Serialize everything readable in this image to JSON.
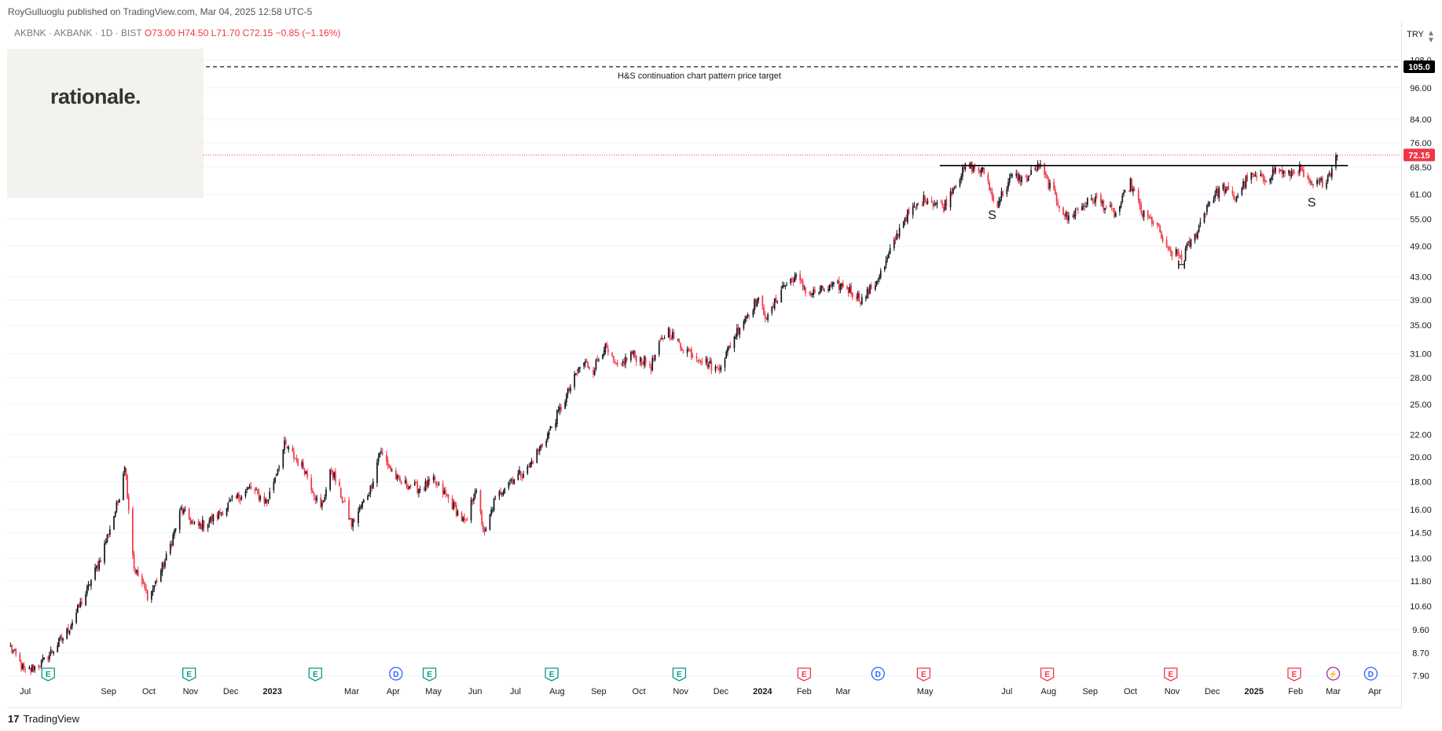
{
  "header": {
    "published": "RoyGulluoglu published on TradingView.com, Mar 04, 2025 12:58 UTC-5",
    "symbol": "AKBNK · AKBANK · 1D · BIST",
    "ohlc": "O73.00  H74.50  L71.70  C72.15  −0.85 (−1.16%)"
  },
  "watermark": "rationale.",
  "currency": "TRY",
  "footer": {
    "brand": "TradingView",
    "mark": "17"
  },
  "colors": {
    "up": "#131722",
    "down": "#f23645",
    "last_price_bg": "#f23645",
    "target_bg": "#000000",
    "grid": "#f0f3fa"
  },
  "chart_data": {
    "type": "candlestick",
    "scale": "log",
    "price_axis": {
      "ticks": [
        7.9,
        8.7,
        9.6,
        10.6,
        11.8,
        13.0,
        14.5,
        16.0,
        18.0,
        20.0,
        22.0,
        25.0,
        28.0,
        31.0,
        35.0,
        39.0,
        43.0,
        49.0,
        55.0,
        61.0,
        68.5,
        76.0,
        84.0,
        96.0,
        108.0
      ],
      "tick_labels": [
        "7.90",
        "8.70",
        "9.60",
        "10.60",
        "11.80",
        "13.00",
        "14.50",
        "16.00",
        "18.00",
        "20.00",
        "22.00",
        "25.00",
        "28.00",
        "31.00",
        "35.00",
        "39.00",
        "43.00",
        "49.00",
        "55.00",
        "61.00",
        "68.50",
        "76.00",
        "84.00",
        "96.00",
        "108.0"
      ],
      "range": [
        7.7,
        118
      ]
    },
    "time_axis": {
      "labels": [
        "Jul",
        "Sep",
        "Oct",
        "Nov",
        "Dec",
        "2023",
        "Mar",
        "Apr",
        "May",
        "Jun",
        "Jul",
        "Aug",
        "Sep",
        "Oct",
        "Nov",
        "Dec",
        "2024",
        "Feb",
        "Mar",
        "May",
        "Jul",
        "Aug",
        "Sep",
        "Oct",
        "Nov",
        "Dec",
        "2025",
        "Feb",
        "Mar",
        "Apr"
      ],
      "bold": [
        "2023",
        "2024",
        "2025"
      ],
      "dates": [
        "2022-07-01",
        "2022-09-01",
        "2022-10-01",
        "2022-11-01",
        "2022-12-01",
        "2023-01-01",
        "2023-03-01",
        "2023-04-01",
        "2023-05-01",
        "2023-06-01",
        "2023-07-01",
        "2023-08-01",
        "2023-09-01",
        "2023-10-01",
        "2023-11-01",
        "2023-12-01",
        "2024-01-01",
        "2024-02-01",
        "2024-03-01",
        "2024-05-01",
        "2024-07-01",
        "2024-08-01",
        "2024-09-01",
        "2024-10-01",
        "2024-11-01",
        "2024-12-01",
        "2025-01-01",
        "2025-02-01",
        "2025-03-01",
        "2025-04-01"
      ]
    },
    "anchors": [
      [
        "2022-06-20",
        8.9
      ],
      [
        "2022-07-01",
        8.0
      ],
      [
        "2022-07-15",
        8.4
      ],
      [
        "2022-08-01",
        9.5
      ],
      [
        "2022-08-15",
        11.2
      ],
      [
        "2022-08-26",
        13.0
      ],
      [
        "2022-09-08",
        16.5
      ],
      [
        "2022-09-13",
        19.5
      ],
      [
        "2022-09-20",
        12.5
      ],
      [
        "2022-10-01",
        11.0
      ],
      [
        "2022-10-14",
        13.0
      ],
      [
        "2022-10-25",
        16.0
      ],
      [
        "2022-11-05",
        14.8
      ],
      [
        "2022-11-20",
        15.5
      ],
      [
        "2022-12-01",
        16.5
      ],
      [
        "2022-12-15",
        17.5
      ],
      [
        "2022-12-28",
        16.5
      ],
      [
        "2023-01-10",
        21.0
      ],
      [
        "2023-01-25",
        19.0
      ],
      [
        "2023-02-06",
        16.0
      ],
      [
        "2023-02-14",
        19.0
      ],
      [
        "2023-03-01",
        15.0
      ],
      [
        "2023-03-15",
        17.5
      ],
      [
        "2023-03-22",
        20.5
      ],
      [
        "2023-04-05",
        18.0
      ],
      [
        "2023-04-20",
        17.5
      ],
      [
        "2023-05-01",
        18.0
      ],
      [
        "2023-05-10",
        17.0
      ],
      [
        "2023-05-25",
        15.0
      ],
      [
        "2023-06-01",
        17.5
      ],
      [
        "2023-06-08",
        14.3
      ],
      [
        "2023-06-15",
        16.5
      ],
      [
        "2023-06-25",
        18.0
      ],
      [
        "2023-07-10",
        19.0
      ],
      [
        "2023-07-25",
        22.0
      ],
      [
        "2023-08-05",
        25.0
      ],
      [
        "2023-08-20",
        30.0
      ],
      [
        "2023-08-28",
        29.0
      ],
      [
        "2023-09-05",
        32.0
      ],
      [
        "2023-09-15",
        29.0
      ],
      [
        "2023-09-25",
        31.0
      ],
      [
        "2023-10-10",
        29.5
      ],
      [
        "2023-10-22",
        34.5
      ],
      [
        "2023-11-01",
        32.0
      ],
      [
        "2023-11-15",
        30.5
      ],
      [
        "2023-11-28",
        29.0
      ],
      [
        "2023-12-05",
        31.0
      ],
      [
        "2023-12-15",
        35.0
      ],
      [
        "2023-12-28",
        39.0
      ],
      [
        "2024-01-05",
        36.0
      ],
      [
        "2024-01-15",
        41.0
      ],
      [
        "2024-01-25",
        43.0
      ],
      [
        "2024-02-05",
        40.0
      ],
      [
        "2024-02-20",
        41.0
      ],
      [
        "2024-03-01",
        41.5
      ],
      [
        "2024-03-15",
        39.0
      ],
      [
        "2024-03-25",
        42.0
      ],
      [
        "2024-04-01",
        45.0
      ],
      [
        "2024-04-15",
        55.0
      ],
      [
        "2024-05-01",
        60.0
      ],
      [
        "2024-05-15",
        58.0
      ],
      [
        "2024-05-22",
        63.0
      ],
      [
        "2024-06-01",
        69.0
      ],
      [
        "2024-06-15",
        67.0
      ],
      [
        "2024-06-22",
        58.0
      ],
      [
        "2024-07-05",
        66.0
      ],
      [
        "2024-07-15",
        65.0
      ],
      [
        "2024-07-25",
        69.0
      ],
      [
        "2024-08-05",
        61.0
      ],
      [
        "2024-08-15",
        55.0
      ],
      [
        "2024-08-25",
        58.0
      ],
      [
        "2024-09-05",
        60.0
      ],
      [
        "2024-09-20",
        56.0
      ],
      [
        "2024-10-01",
        64.0
      ],
      [
        "2024-10-10",
        56.0
      ],
      [
        "2024-10-20",
        54.0
      ],
      [
        "2024-10-28",
        48.0
      ],
      [
        "2024-11-08",
        47.0
      ],
      [
        "2024-11-18",
        51.0
      ],
      [
        "2024-11-28",
        59.0
      ],
      [
        "2024-12-08",
        63.0
      ],
      [
        "2024-12-18",
        60.0
      ],
      [
        "2024-12-28",
        66.0
      ],
      [
        "2025-01-08",
        65.0
      ],
      [
        "2025-01-18",
        68.0
      ],
      [
        "2025-01-26",
        66.0
      ],
      [
        "2025-02-03",
        68.5
      ],
      [
        "2025-02-12",
        63.0
      ],
      [
        "2025-02-22",
        64.5
      ],
      [
        "2025-02-28",
        68.0
      ],
      [
        "2025-03-03",
        73.0
      ],
      [
        "2025-03-04",
        72.15
      ]
    ],
    "last_price": 72.15,
    "last_price_label": "72.15",
    "target_price": 105.0,
    "target_price_label": "105.0",
    "target_text": "H&S continuation chart pattern price target",
    "neckline": {
      "start": "2024-05-12",
      "end": "2025-03-12",
      "price": 69.0
    },
    "pattern_labels": [
      {
        "text": "S",
        "date": "2024-06-20",
        "price": 55.0
      },
      {
        "text": "H",
        "date": "2024-11-08",
        "price": 44.5
      },
      {
        "text": "S",
        "date": "2025-02-13",
        "price": 58.0
      }
    ],
    "events": [
      {
        "type": "E",
        "date": "2022-07-18",
        "style": "past"
      },
      {
        "type": "E",
        "date": "2022-10-31",
        "style": "past"
      },
      {
        "type": "E",
        "date": "2023-02-02",
        "style": "past"
      },
      {
        "type": "D",
        "date": "2023-04-03",
        "style": "dividend"
      },
      {
        "type": "E",
        "date": "2023-04-28",
        "style": "past"
      },
      {
        "type": "E",
        "date": "2023-07-28",
        "style": "past"
      },
      {
        "type": "E",
        "date": "2023-10-31",
        "style": "past"
      },
      {
        "type": "E",
        "date": "2024-02-01",
        "style": "future"
      },
      {
        "type": "D",
        "date": "2024-03-27",
        "style": "dividend"
      },
      {
        "type": "E",
        "date": "2024-04-30",
        "style": "future"
      },
      {
        "type": "E",
        "date": "2024-07-31",
        "style": "future"
      },
      {
        "type": "E",
        "date": "2024-10-31",
        "style": "future"
      },
      {
        "type": "E",
        "date": "2025-01-31",
        "style": "future"
      },
      {
        "type": "⚡",
        "date": "2025-03-01",
        "style": "split"
      },
      {
        "type": "D",
        "date": "2025-03-29",
        "style": "dividend"
      }
    ]
  }
}
